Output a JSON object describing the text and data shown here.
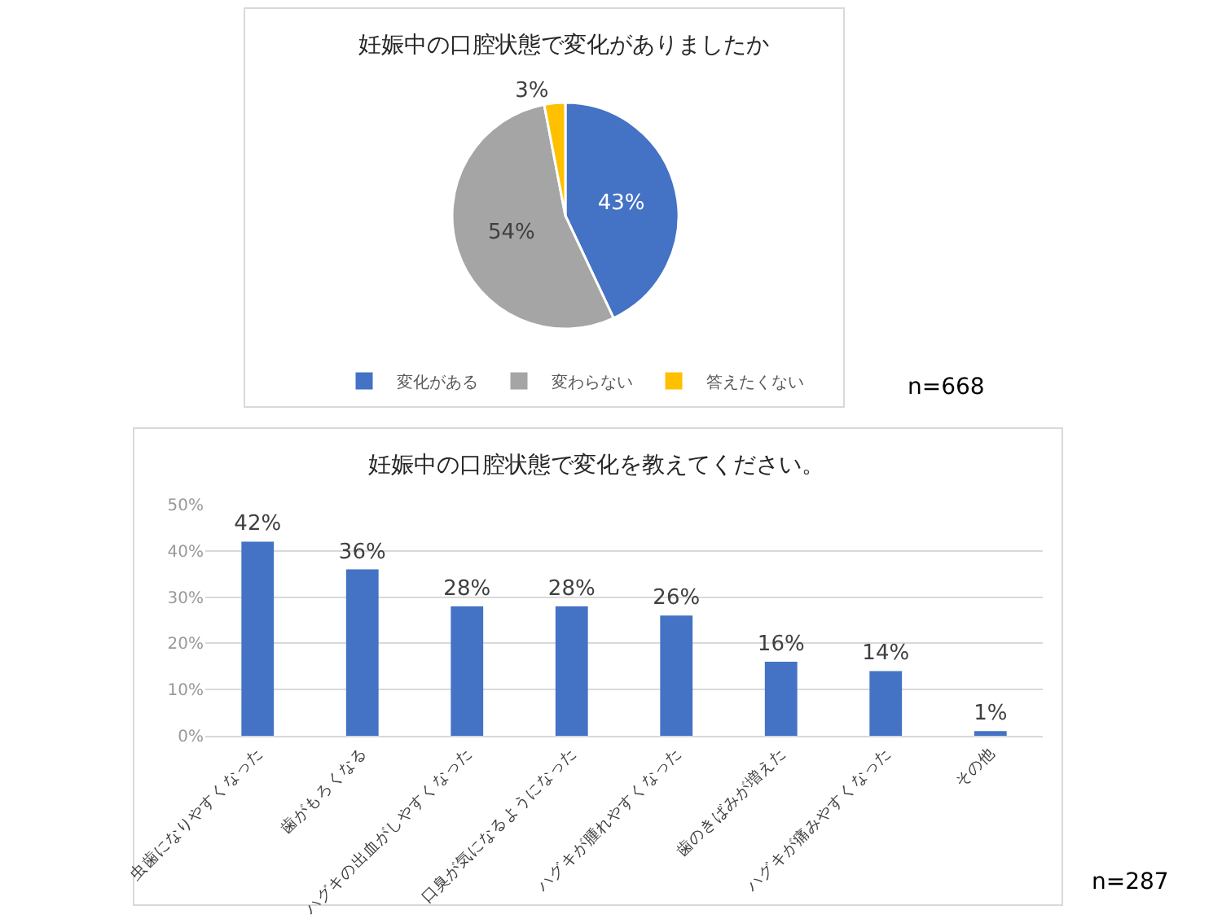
{
  "chart_data": [
    {
      "type": "pie",
      "title": "妊娠中の口腔状態で変化がありましたか",
      "categories": [
        "変化がある",
        "変わらない",
        "答えたくない"
      ],
      "values": [
        43,
        54,
        3
      ],
      "colors": [
        "#4472c4",
        "#a5a5a5",
        "#ffc000"
      ],
      "value_labels": [
        "43%",
        "54%",
        "3%"
      ],
      "legend": "bottom",
      "annotations": [
        "n=668"
      ]
    },
    {
      "type": "bar",
      "title": "妊娠中の口腔状態で変化を教えてください。",
      "categories": [
        "虫歯になりやすくなった",
        "歯がもろくなる",
        "ハグキの出血がしやすくなった",
        "口臭が気になるようになった",
        "ハグキが腫れやすくなった",
        "歯のきばみが増えた",
        "ハグキが痛みやすくなった",
        "その他"
      ],
      "values": [
        42,
        36,
        28,
        28,
        26,
        16,
        14,
        1
      ],
      "color": "#4472c4",
      "value_labels": [
        "42%",
        "36%",
        "28%",
        "28%",
        "26%",
        "16%",
        "14%",
        "1%"
      ],
      "ylim": [
        0,
        50
      ],
      "yticks": [
        {
          "value": 0,
          "label": "0%"
        },
        {
          "value": 10,
          "label": "10%"
        },
        {
          "value": 20,
          "label": "20%"
        },
        {
          "value": 30,
          "label": "30%"
        },
        {
          "value": 40,
          "label": "40%"
        },
        {
          "value": 50,
          "label": "50%"
        }
      ],
      "grid": "y",
      "annotations": [
        "n=287"
      ]
    }
  ]
}
